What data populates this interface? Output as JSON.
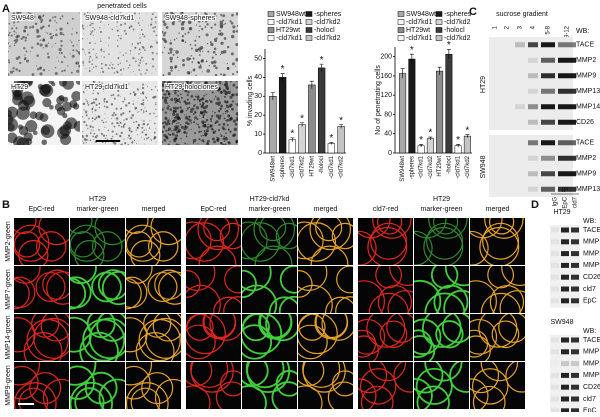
{
  "panel_labels": [
    "A",
    "B",
    "C",
    "D"
  ],
  "panel_a": {
    "title": "penetrated cells",
    "images": [
      "SW948",
      "SW948-cld7kd1",
      "SW948-spheres",
      "HT29",
      "HT29-cld7kd1",
      "HT29-holoclones"
    ]
  },
  "chart_data": [
    {
      "type": "bar",
      "y_label": "% invading cells",
      "categories": [
        "SW948wt",
        "-spheres",
        "-cld7kd1",
        "-cld7kd2",
        "HT29wt",
        "-holocl",
        "-cld7kd1",
        "-cld7kd2"
      ],
      "values": [
        30,
        40,
        7,
        15,
        36,
        45,
        5,
        14
      ],
      "errors": [
        2,
        2,
        1,
        1,
        2,
        2,
        0.5,
        1
      ],
      "annotations": [
        null,
        "*",
        "*",
        "*",
        null,
        "*",
        "*",
        "*"
      ],
      "colors": [
        "#a8a8a8",
        "#1a1a1a",
        "#ffffff",
        "#d4d4d4",
        "#8c8c8c",
        "#3a3a3a",
        "#ffffff",
        "#c4c4c4"
      ],
      "ylim": [
        0,
        55
      ],
      "yticks": [
        0,
        10,
        20,
        30,
        40,
        50
      ]
    },
    {
      "type": "bar",
      "y_label": "No of penetrating cells",
      "categories": [
        "SW948wt",
        "-spheres",
        "-cld7kd1",
        "-cld7kd2",
        "HT29wt",
        "-holocl",
        "-cld7kd1",
        "-cld7kd2"
      ],
      "values": [
        165,
        195,
        15,
        30,
        170,
        205,
        15,
        35
      ],
      "errors": [
        10,
        10,
        3,
        3,
        8,
        10,
        3,
        3
      ],
      "annotations": [
        null,
        "*",
        "*",
        "*",
        null,
        "*",
        "*",
        "*"
      ],
      "colors": [
        "#a8a8a8",
        "#1a1a1a",
        "#ffffff",
        "#d4d4d4",
        "#8c8c8c",
        "#3a3a3a",
        "#ffffff",
        "#c4c4c4"
      ],
      "ylim": [
        0,
        220
      ],
      "yticks": [
        0,
        40,
        80,
        120,
        160,
        200
      ]
    }
  ],
  "panel_b": {
    "groups": [
      {
        "title": "HT29",
        "columns": [
          "EpC-red",
          "marker-green",
          "merged"
        ]
      },
      {
        "title": "HT29-cld7kd",
        "columns": [
          "EpC-red",
          "marker-green",
          "merged"
        ]
      },
      {
        "title": "HT29",
        "columns": [
          "cld7-red",
          "marker-green",
          "merged"
        ]
      }
    ],
    "rows": [
      "MMP2-green",
      "MMP7-green",
      "MMP14-green",
      "MMP9-green"
    ]
  },
  "panel_c": {
    "title": "sucrose gradient",
    "lanes": [
      "1",
      "2",
      "3",
      "4",
      "5-8",
      "9-12"
    ],
    "wb": "WB:",
    "groups": [
      {
        "name": "HT29",
        "rows": [
          "TACE",
          "MMP2",
          "MMP9",
          "MMP13",
          "MMP14",
          "CD26"
        ]
      },
      {
        "name": "SW948",
        "rows": [
          "TACE",
          "MMP2",
          "MMP9",
          "MMP13"
        ]
      }
    ]
  },
  "panel_d": {
    "ip": "IP",
    "lanes": [
      "IgG",
      "EpC",
      "cld7"
    ],
    "groups": [
      {
        "name": "HT29",
        "wb": "WB:",
        "rows": [
          "TACE",
          "MMP14",
          "MMP2",
          "MMP9",
          "CD26",
          "cld7",
          "EpC"
        ]
      },
      {
        "name": "SW948",
        "wb": "WB:",
        "rows": [
          "TACE",
          "MMP14",
          "MMP2",
          "MMP9",
          "CD26",
          "cld7",
          "EpC"
        ]
      }
    ]
  }
}
